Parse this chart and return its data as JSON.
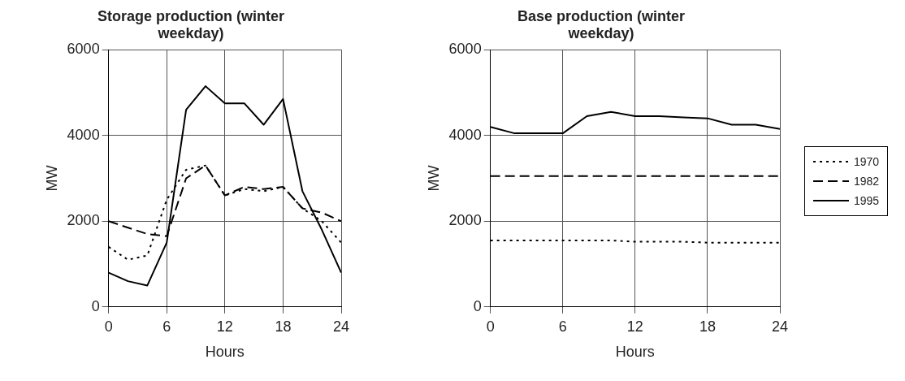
{
  "chart_data": [
    {
      "type": "line",
      "title": "Storage production (winter weekday)",
      "xlabel": "Hours",
      "ylabel": "MW",
      "xlim": [
        0,
        24
      ],
      "xticks": [
        0,
        6,
        12,
        18,
        24
      ],
      "ylim": [
        0,
        6000
      ],
      "yticks": [
        0,
        2000,
        4000,
        6000
      ],
      "grid": true,
      "legend": false,
      "marker": "none",
      "x": [
        0,
        2,
        4,
        6,
        8,
        10,
        12,
        14,
        16,
        18,
        20,
        22,
        24
      ],
      "series": [
        {
          "color": "#000000",
          "line_style": "dotted",
          "values": [
            1400,
            1100,
            1200,
            2500,
            3200,
            3300,
            2600,
            2750,
            2700,
            2800,
            2300,
            2000,
            1500
          ]
        },
        {
          "color": "#000000",
          "line_style": "dashed",
          "values": [
            2000,
            1850,
            1700,
            1650,
            3000,
            3300,
            2600,
            2800,
            2750,
            2800,
            2300,
            2200,
            2000
          ]
        },
        {
          "color": "#000000",
          "line_style": "solid",
          "values": [
            800,
            600,
            500,
            1500,
            4600,
            5150,
            4750,
            4750,
            4250,
            4850,
            2700,
            1800,
            800
          ]
        }
      ]
    },
    {
      "type": "line",
      "title": "Base production (winter weekday)",
      "xlabel": "Hours",
      "ylabel": "MW",
      "xlim": [
        0,
        24
      ],
      "xticks": [
        0,
        6,
        12,
        18,
        24
      ],
      "ylim": [
        0,
        6000
      ],
      "yticks": [
        0,
        2000,
        4000,
        6000
      ],
      "grid": true,
      "legend": "right",
      "marker": "none",
      "x": [
        0,
        2,
        4,
        6,
        8,
        10,
        12,
        14,
        16,
        18,
        20,
        22,
        24
      ],
      "series": [
        {
          "name": "1970",
          "color": "#000000",
          "line_style": "dotted",
          "values": [
            1550,
            1550,
            1550,
            1550,
            1550,
            1550,
            1520,
            1520,
            1520,
            1500,
            1500,
            1500,
            1500
          ]
        },
        {
          "name": "1982",
          "color": "#000000",
          "line_style": "dashed",
          "values": [
            3050,
            3050,
            3050,
            3050,
            3050,
            3050,
            3050,
            3050,
            3050,
            3050,
            3050,
            3050,
            3050
          ]
        },
        {
          "name": "1995",
          "color": "#000000",
          "line_style": "solid",
          "values": [
            4200,
            4050,
            4050,
            4050,
            4450,
            4550,
            4450,
            4450,
            4420,
            4400,
            4250,
            4250,
            4150
          ]
        }
      ]
    }
  ]
}
